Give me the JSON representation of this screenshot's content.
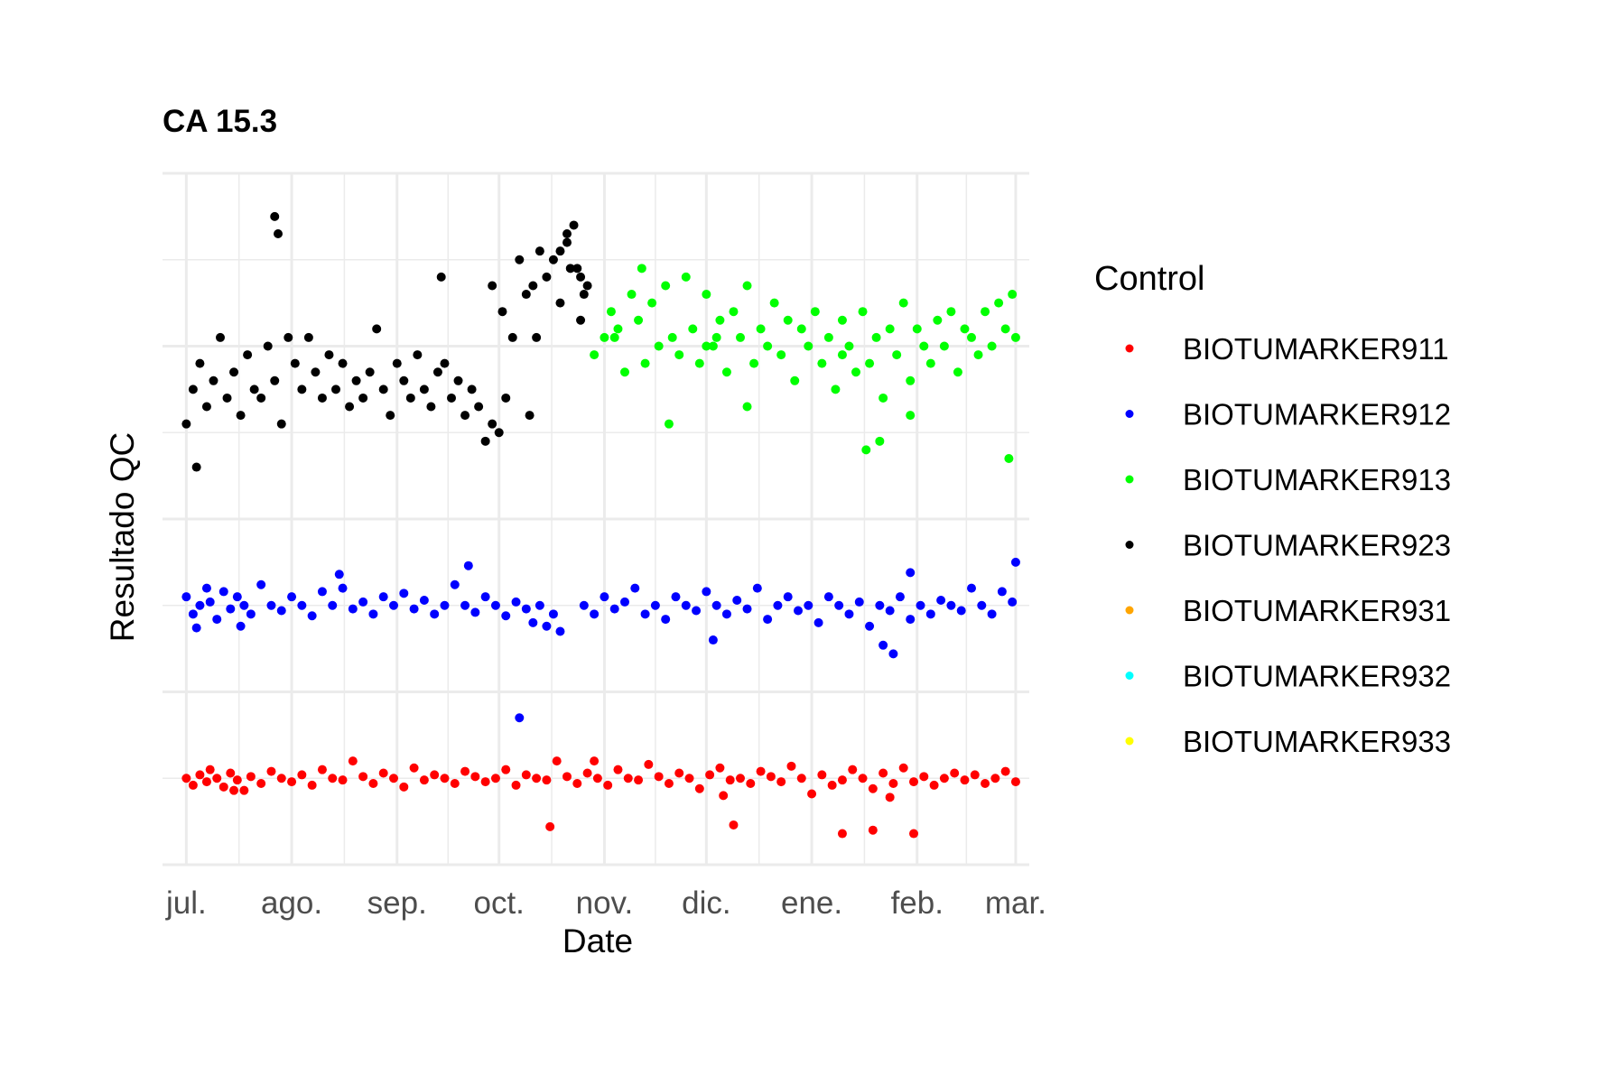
{
  "chart_data": {
    "type": "scatter",
    "title": "CA 15.3",
    "xlabel": "Date",
    "ylabel": "Resultado QC",
    "x_ticks": [
      "jul.",
      "ago.",
      "sep.",
      "oct.",
      "nov.",
      "dic.",
      "ene.",
      "feb.",
      "mar."
    ],
    "x_range": [
      "2023-06-24",
      "2024-03-05"
    ],
    "y_range": [
      0,
      4
    ],
    "y_ticks_shown": false,
    "grid": true,
    "legend": {
      "title": "Control",
      "position": "right",
      "entries": [
        {
          "name": "BIOTUMARKER911",
          "color": "#ff0000"
        },
        {
          "name": "BIOTUMARKER912",
          "color": "#0000ff"
        },
        {
          "name": "BIOTUMARKER913",
          "color": "#00ff00"
        },
        {
          "name": "BIOTUMARKER923",
          "color": "#000000"
        },
        {
          "name": "BIOTUMARKER931",
          "color": "#ffa500"
        },
        {
          "name": "BIOTUMARKER932",
          "color": "#00ffff"
        },
        {
          "name": "BIOTUMARKER933",
          "color": "#ffff00"
        }
      ]
    },
    "series": [
      {
        "name": "BIOTUMARKER911",
        "color": "#ff0000",
        "x": [
          "2023-07-01",
          "2023-07-03",
          "2023-07-05",
          "2023-07-07",
          "2023-07-08",
          "2023-07-10",
          "2023-07-12",
          "2023-07-14",
          "2023-07-16",
          "2023-07-18",
          "2023-07-20",
          "2023-07-23",
          "2023-07-26",
          "2023-07-29",
          "2023-08-01",
          "2023-08-04",
          "2023-08-07",
          "2023-08-10",
          "2023-08-13",
          "2023-08-16",
          "2023-08-19",
          "2023-08-22",
          "2023-08-25",
          "2023-08-28",
          "2023-08-31",
          "2023-09-03",
          "2023-09-06",
          "2023-09-09",
          "2023-09-12",
          "2023-09-15",
          "2023-09-18",
          "2023-09-21",
          "2023-09-24",
          "2023-09-27",
          "2023-09-30",
          "2023-10-03",
          "2023-10-06",
          "2023-10-09",
          "2023-10-12",
          "2023-10-15",
          "2023-10-18",
          "2023-10-21",
          "2023-10-24",
          "2023-10-27",
          "2023-10-30",
          "2023-11-02",
          "2023-11-05",
          "2023-11-08",
          "2023-11-11",
          "2023-11-14",
          "2023-11-17",
          "2023-11-20",
          "2023-11-23",
          "2023-11-26",
          "2023-11-29",
          "2023-12-02",
          "2023-12-05",
          "2023-12-08",
          "2023-12-11",
          "2023-12-14",
          "2023-12-17",
          "2023-12-20",
          "2023-12-23",
          "2023-12-26",
          "2023-12-29",
          "2024-01-01",
          "2024-01-04",
          "2024-01-07",
          "2024-01-10",
          "2024-01-13",
          "2024-01-16",
          "2024-01-19",
          "2024-01-22",
          "2024-01-25",
          "2024-01-28",
          "2024-01-31",
          "2024-02-03",
          "2024-02-06",
          "2024-02-09",
          "2024-02-12",
          "2024-02-15",
          "2024-02-18",
          "2024-02-21",
          "2024-02-24",
          "2024-02-27",
          "2024-03-01",
          "2023-10-16",
          "2023-12-06",
          "2023-12-09",
          "2024-01-10",
          "2024-01-19",
          "2024-01-31",
          "2023-07-15",
          "2023-10-29",
          "2024-01-24"
        ],
        "y": [
          0.5,
          0.46,
          0.52,
          0.48,
          0.55,
          0.5,
          0.45,
          0.53,
          0.49,
          0.43,
          0.51,
          0.47,
          0.54,
          0.5,
          0.48,
          0.52,
          0.46,
          0.55,
          0.5,
          0.49,
          0.6,
          0.51,
          0.47,
          0.53,
          0.5,
          0.45,
          0.56,
          0.49,
          0.52,
          0.5,
          0.47,
          0.54,
          0.51,
          0.48,
          0.5,
          0.55,
          0.46,
          0.52,
          0.5,
          0.49,
          0.6,
          0.51,
          0.47,
          0.53,
          0.5,
          0.46,
          0.55,
          0.5,
          0.49,
          0.58,
          0.51,
          0.47,
          0.53,
          0.5,
          0.44,
          0.52,
          0.56,
          0.49,
          0.5,
          0.47,
          0.54,
          0.51,
          0.48,
          0.57,
          0.5,
          0.41,
          0.52,
          0.46,
          0.49,
          0.55,
          0.5,
          0.44,
          0.53,
          0.47,
          0.56,
          0.48,
          0.51,
          0.46,
          0.5,
          0.53,
          0.49,
          0.52,
          0.47,
          0.5,
          0.54,
          0.48,
          0.22,
          0.4,
          0.23,
          0.18,
          0.2,
          0.18,
          0.43,
          0.6,
          0.39
        ]
      },
      {
        "name": "BIOTUMARKER912",
        "color": "#0000ff",
        "x": [
          "2023-07-01",
          "2023-07-03",
          "2023-07-05",
          "2023-07-07",
          "2023-07-08",
          "2023-07-10",
          "2023-07-12",
          "2023-07-14",
          "2023-07-16",
          "2023-07-18",
          "2023-07-20",
          "2023-07-23",
          "2023-07-26",
          "2023-07-29",
          "2023-08-01",
          "2023-08-04",
          "2023-08-07",
          "2023-08-10",
          "2023-08-13",
          "2023-08-16",
          "2023-08-19",
          "2023-08-22",
          "2023-08-25",
          "2023-08-28",
          "2023-08-31",
          "2023-09-03",
          "2023-09-06",
          "2023-09-09",
          "2023-09-12",
          "2023-09-15",
          "2023-09-18",
          "2023-09-21",
          "2023-09-24",
          "2023-09-27",
          "2023-09-30",
          "2023-10-03",
          "2023-10-06",
          "2023-10-09",
          "2023-10-11",
          "2023-10-13",
          "2023-10-15",
          "2023-10-17",
          "2023-10-19",
          "2023-10-26",
          "2023-10-29",
          "2023-11-01",
          "2023-11-04",
          "2023-11-07",
          "2023-11-10",
          "2023-11-13",
          "2023-11-16",
          "2023-11-19",
          "2023-11-22",
          "2023-11-25",
          "2023-11-28",
          "2023-12-01",
          "2023-12-04",
          "2023-12-07",
          "2023-12-10",
          "2023-12-13",
          "2023-12-16",
          "2023-12-19",
          "2023-12-22",
          "2023-12-25",
          "2023-12-28",
          "2023-12-31",
          "2024-01-03",
          "2024-01-06",
          "2024-01-09",
          "2024-01-12",
          "2024-01-15",
          "2024-01-18",
          "2024-01-21",
          "2024-01-24",
          "2024-01-27",
          "2024-01-30",
          "2024-02-02",
          "2024-02-05",
          "2024-02-08",
          "2024-02-11",
          "2024-02-14",
          "2024-02-17",
          "2024-02-20",
          "2024-02-23",
          "2024-02-26",
          "2024-02-29",
          "2023-07-04",
          "2023-07-17",
          "2023-08-15",
          "2023-09-22",
          "2023-12-03",
          "2024-01-22",
          "2024-01-25",
          "2023-10-07",
          "2024-01-30",
          "2024-03-01"
        ],
        "y": [
          1.55,
          1.45,
          1.5,
          1.6,
          1.52,
          1.42,
          1.58,
          1.48,
          1.55,
          1.5,
          1.45,
          1.62,
          1.5,
          1.47,
          1.55,
          1.5,
          1.44,
          1.58,
          1.5,
          1.6,
          1.48,
          1.52,
          1.45,
          1.55,
          1.5,
          1.57,
          1.48,
          1.53,
          1.45,
          1.5,
          1.62,
          1.5,
          1.46,
          1.55,
          1.5,
          1.44,
          1.52,
          1.48,
          1.4,
          1.5,
          1.38,
          1.45,
          1.35,
          1.5,
          1.45,
          1.55,
          1.48,
          1.52,
          1.6,
          1.45,
          1.5,
          1.42,
          1.55,
          1.5,
          1.47,
          1.58,
          1.5,
          1.45,
          1.53,
          1.48,
          1.6,
          1.42,
          1.5,
          1.55,
          1.47,
          1.5,
          1.4,
          1.55,
          1.5,
          1.45,
          1.52,
          1.38,
          1.5,
          1.47,
          1.55,
          1.42,
          1.5,
          1.45,
          1.53,
          1.5,
          1.47,
          1.6,
          1.5,
          1.45,
          1.58,
          1.52,
          1.37,
          1.38,
          1.68,
          1.73,
          1.3,
          1.27,
          1.22,
          0.85,
          1.69,
          1.75
        ]
      },
      {
        "name": "BIOTUMARKER913",
        "color": "#00ff00",
        "x": [
          "2023-10-29",
          "2023-11-01",
          "2023-11-03",
          "2023-11-05",
          "2023-11-07",
          "2023-11-09",
          "2023-11-11",
          "2023-11-13",
          "2023-11-15",
          "2023-11-17",
          "2023-11-19",
          "2023-11-21",
          "2023-11-23",
          "2023-11-25",
          "2023-11-27",
          "2023-11-29",
          "2023-12-01",
          "2023-12-03",
          "2023-12-05",
          "2023-12-07",
          "2023-12-09",
          "2023-12-11",
          "2023-12-13",
          "2023-12-15",
          "2023-12-17",
          "2023-12-19",
          "2023-12-21",
          "2023-12-23",
          "2023-12-25",
          "2023-12-27",
          "2023-12-29",
          "2023-12-31",
          "2024-01-02",
          "2024-01-04",
          "2024-01-06",
          "2024-01-08",
          "2024-01-10",
          "2024-01-12",
          "2024-01-14",
          "2024-01-16",
          "2024-01-18",
          "2024-01-20",
          "2024-01-22",
          "2024-01-24",
          "2024-01-26",
          "2024-01-28",
          "2024-01-30",
          "2024-02-01",
          "2024-02-03",
          "2024-02-05",
          "2024-02-07",
          "2024-02-09",
          "2024-02-11",
          "2024-02-13",
          "2024-02-15",
          "2024-02-17",
          "2024-02-19",
          "2024-02-21",
          "2024-02-23",
          "2024-02-25",
          "2024-02-27",
          "2024-02-29",
          "2024-03-01",
          "2023-11-04",
          "2023-11-12",
          "2023-12-01",
          "2023-12-04",
          "2024-01-10",
          "2024-01-17",
          "2024-01-21",
          "2024-01-30",
          "2024-02-28",
          "2023-12-13",
          "2023-11-20"
        ],
        "y": [
          2.95,
          3.05,
          3.2,
          3.1,
          2.85,
          3.3,
          3.15,
          2.9,
          3.25,
          3.0,
          3.35,
          3.05,
          2.95,
          3.4,
          3.1,
          2.9,
          3.3,
          3.0,
          3.15,
          2.85,
          3.2,
          3.05,
          3.35,
          2.9,
          3.1,
          3.0,
          3.25,
          2.95,
          3.15,
          2.8,
          3.1,
          3.0,
          3.2,
          2.9,
          3.05,
          2.75,
          3.15,
          3.0,
          2.85,
          3.2,
          2.9,
          3.05,
          2.7,
          3.1,
          2.95,
          3.25,
          2.8,
          3.1,
          3.0,
          2.9,
          3.15,
          3.0,
          3.2,
          2.85,
          3.1,
          3.05,
          2.95,
          3.2,
          3.0,
          3.25,
          3.1,
          3.3,
          3.05,
          3.05,
          3.45,
          3.0,
          3.05,
          2.95,
          2.4,
          2.45,
          2.6,
          2.35,
          2.65,
          2.55
        ]
      },
      {
        "name": "BIOTUMARKER923",
        "color": "#000000",
        "x": [
          "2023-07-01",
          "2023-07-03",
          "2023-07-05",
          "2023-07-07",
          "2023-07-09",
          "2023-07-11",
          "2023-07-13",
          "2023-07-15",
          "2023-07-17",
          "2023-07-19",
          "2023-07-21",
          "2023-07-23",
          "2023-07-25",
          "2023-07-27",
          "2023-07-29",
          "2023-07-31",
          "2023-08-02",
          "2023-08-04",
          "2023-08-06",
          "2023-08-08",
          "2023-08-10",
          "2023-08-12",
          "2023-08-14",
          "2023-08-16",
          "2023-08-18",
          "2023-08-20",
          "2023-08-22",
          "2023-08-24",
          "2023-08-26",
          "2023-08-28",
          "2023-08-30",
          "2023-09-01",
          "2023-09-03",
          "2023-09-05",
          "2023-09-07",
          "2023-09-09",
          "2023-09-11",
          "2023-09-13",
          "2023-09-15",
          "2023-09-17",
          "2023-09-19",
          "2023-09-21",
          "2023-09-23",
          "2023-09-25",
          "2023-09-27",
          "2023-09-29",
          "2023-10-01",
          "2023-10-03",
          "2023-10-05",
          "2023-10-07",
          "2023-10-09",
          "2023-10-11",
          "2023-10-13",
          "2023-10-15",
          "2023-10-17",
          "2023-10-19",
          "2023-10-21",
          "2023-10-23",
          "2023-10-25",
          "2023-07-04",
          "2023-07-27",
          "2023-07-28",
          "2023-09-14",
          "2023-09-29",
          "2023-10-02",
          "2023-10-21",
          "2023-10-22",
          "2023-10-24",
          "2023-10-25",
          "2023-10-26",
          "2023-10-27",
          "2023-10-19",
          "2023-10-10",
          "2023-10-12"
        ],
        "y": [
          2.55,
          2.75,
          2.9,
          2.65,
          2.8,
          3.05,
          2.7,
          2.85,
          2.6,
          2.95,
          2.75,
          2.7,
          3.0,
          2.8,
          2.55,
          3.05,
          2.9,
          2.75,
          3.05,
          2.85,
          2.7,
          2.95,
          2.75,
          2.9,
          2.65,
          2.8,
          2.7,
          2.85,
          3.1,
          2.75,
          2.6,
          2.9,
          2.8,
          2.7,
          2.95,
          2.75,
          2.65,
          2.85,
          2.9,
          2.7,
          2.8,
          2.6,
          2.75,
          2.65,
          2.45,
          2.55,
          2.5,
          2.7,
          3.05,
          3.5,
          3.3,
          3.35,
          3.55,
          3.4,
          3.5,
          3.25,
          3.65,
          3.7,
          3.15,
          2.3,
          3.75,
          3.65,
          3.4,
          3.35,
          3.2,
          3.6,
          3.45,
          3.45,
          3.4,
          3.3,
          3.35,
          3.55,
          2.6,
          3.05
        ]
      }
    ]
  }
}
